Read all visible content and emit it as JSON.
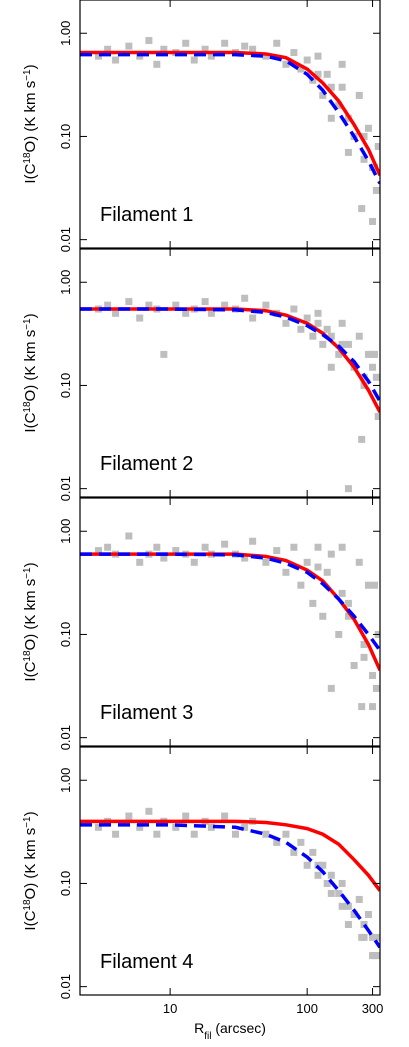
{
  "chart_data": [
    {
      "type": "scatter",
      "annotation": "Filament 1",
      "ylabel": [
        "I(C",
        "18",
        "O) (K km s",
        "−1",
        ")"
      ],
      "xlog": true,
      "ylog": true,
      "xlim": [
        2.2,
        340
      ],
      "ylim": [
        0.0083,
        2.1
      ],
      "xticks": [
        10,
        100,
        300
      ],
      "yticks": [
        {
          "value": 1,
          "label": "1.00"
        },
        {
          "value": 0.1,
          "label": "0.10"
        },
        {
          "value": 0.01,
          "label": "0.01"
        }
      ],
      "series": [
        {
          "marker": "square",
          "color": "#bebebe",
          "x": [
            3,
            3.5,
            4,
            5,
            6,
            7,
            8,
            9,
            11,
            13,
            15,
            18,
            20,
            25,
            30,
            35,
            40,
            50,
            60,
            70,
            80,
            90,
            100,
            110,
            120,
            130,
            140,
            150,
            170,
            180,
            200,
            220,
            240,
            260,
            280,
            300,
            320,
            330,
            150,
            200,
            250,
            300,
            120,
            180,
            260,
            310
          ],
          "values": [
            0.6,
            0.7,
            0.55,
            0.75,
            0.6,
            0.85,
            0.5,
            0.7,
            0.65,
            0.8,
            0.55,
            0.7,
            0.6,
            0.8,
            0.65,
            0.75,
            0.7,
            0.6,
            0.8,
            0.5,
            0.65,
            0.45,
            0.55,
            0.35,
            0.6,
            0.25,
            0.4,
            0.3,
            0.2,
            0.5,
            0.15,
            0.1,
            0.25,
            0.06,
            0.12,
            0.05,
            0.03,
            0.08,
            0.15,
            0.07,
            0.02,
            0.015,
            0.4,
            0.3,
            0.1,
            0.05
          ]
        },
        {
          "line": "solid",
          "color": "#ff0000",
          "x": [
            2.2,
            10,
            30,
            50,
            70,
            100,
            130,
            170,
            220,
            280,
            340
          ],
          "values": [
            0.65,
            0.65,
            0.65,
            0.63,
            0.58,
            0.45,
            0.33,
            0.22,
            0.13,
            0.075,
            0.042
          ]
        },
        {
          "line": "dashed",
          "color": "#0000ff",
          "x": [
            2.2,
            10,
            30,
            50,
            70,
            100,
            130,
            170,
            220,
            280,
            340
          ],
          "values": [
            0.62,
            0.62,
            0.62,
            0.6,
            0.54,
            0.4,
            0.28,
            0.17,
            0.1,
            0.058,
            0.035
          ]
        }
      ]
    },
    {
      "type": "scatter",
      "annotation": "Filament 2",
      "ylabel": [
        "I(C",
        "18",
        "O) (K km s",
        "−1",
        ")"
      ],
      "xlog": true,
      "ylog": true,
      "xlim": [
        2.2,
        340
      ],
      "ylim": [
        0.0083,
        2.1
      ],
      "xticks": [
        10,
        100,
        300
      ],
      "yticks": [
        {
          "value": 1,
          "label": "1.00"
        },
        {
          "value": 0.1,
          "label": "0.10"
        },
        {
          "value": 0.01,
          "label": "0.01"
        }
      ],
      "series": [
        {
          "marker": "square",
          "color": "#bebebe",
          "x": [
            3,
            3.5,
            4,
            5,
            6,
            7,
            8,
            9,
            11,
            13,
            15,
            18,
            20,
            25,
            30,
            35,
            40,
            50,
            60,
            70,
            80,
            90,
            100,
            110,
            120,
            130,
            140,
            150,
            170,
            180,
            200,
            220,
            240,
            260,
            280,
            300,
            320,
            330,
            150,
            200,
            250,
            300,
            120,
            180,
            260,
            310
          ],
          "values": [
            0.55,
            0.6,
            0.5,
            0.65,
            0.45,
            0.6,
            0.55,
            0.2,
            0.6,
            0.5,
            0.55,
            0.65,
            0.5,
            0.6,
            0.55,
            0.7,
            0.45,
            0.6,
            0.5,
            0.4,
            0.55,
            0.35,
            0.45,
            0.3,
            0.5,
            0.25,
            0.35,
            0.3,
            0.2,
            0.4,
            0.25,
            0.15,
            0.3,
            0.1,
            0.2,
            0.15,
            0.12,
            0.05,
            0.15,
            0.01,
            0.03,
            0.2,
            0.4,
            0.25,
            0.12,
            0.2
          ]
        },
        {
          "line": "solid",
          "color": "#ff0000",
          "x": [
            2.2,
            10,
            30,
            50,
            70,
            100,
            130,
            170,
            220,
            280,
            340
          ],
          "values": [
            0.55,
            0.55,
            0.55,
            0.53,
            0.48,
            0.4,
            0.32,
            0.23,
            0.15,
            0.09,
            0.055
          ]
        },
        {
          "line": "dashed",
          "color": "#0000ff",
          "x": [
            2.2,
            10,
            30,
            50,
            70,
            100,
            130,
            170,
            220,
            280,
            340
          ],
          "values": [
            0.55,
            0.55,
            0.54,
            0.51,
            0.46,
            0.38,
            0.31,
            0.24,
            0.17,
            0.11,
            0.07
          ]
        }
      ]
    },
    {
      "type": "scatter",
      "annotation": "Filament 3",
      "ylabel": [
        "I(C",
        "18",
        "O) (K km s",
        "−1",
        ")"
      ],
      "xlog": true,
      "ylog": true,
      "xlim": [
        2.2,
        340
      ],
      "ylim": [
        0.0083,
        2.1
      ],
      "xticks": [
        10,
        100,
        300
      ],
      "yticks": [
        {
          "value": 1,
          "label": "1.00"
        },
        {
          "value": 0.1,
          "label": "0.10"
        },
        {
          "value": 0.01,
          "label": "0.01"
        }
      ],
      "series": [
        {
          "marker": "square",
          "color": "#bebebe",
          "x": [
            3,
            3.5,
            4,
            5,
            6,
            7,
            8,
            9,
            11,
            13,
            15,
            18,
            20,
            25,
            30,
            35,
            40,
            50,
            60,
            70,
            80,
            90,
            100,
            110,
            120,
            130,
            140,
            150,
            170,
            180,
            200,
            220,
            240,
            260,
            280,
            300,
            320,
            330,
            150,
            200,
            250,
            300,
            120,
            180,
            260,
            310
          ],
          "values": [
            0.65,
            0.7,
            0.6,
            0.9,
            0.5,
            0.6,
            0.7,
            0.55,
            0.65,
            0.6,
            0.5,
            0.7,
            0.6,
            0.75,
            0.6,
            0.55,
            0.8,
            0.5,
            0.65,
            0.4,
            0.7,
            0.3,
            0.5,
            0.2,
            0.7,
            0.15,
            0.4,
            0.6,
            0.1,
            0.7,
            0.2,
            0.05,
            0.5,
            0.08,
            0.3,
            0.04,
            0.03,
            0.1,
            0.03,
            0.15,
            0.02,
            0.02,
            0.45,
            0.25,
            0.06,
            0.3
          ]
        },
        {
          "line": "solid",
          "color": "#ff0000",
          "x": [
            2.2,
            10,
            30,
            50,
            70,
            100,
            130,
            170,
            220,
            280,
            340
          ],
          "values": [
            0.6,
            0.6,
            0.6,
            0.57,
            0.52,
            0.42,
            0.33,
            0.22,
            0.14,
            0.08,
            0.045
          ]
        },
        {
          "line": "dashed",
          "color": "#0000ff",
          "x": [
            2.2,
            10,
            30,
            50,
            70,
            100,
            130,
            170,
            220,
            280,
            340
          ],
          "values": [
            0.6,
            0.6,
            0.59,
            0.55,
            0.49,
            0.4,
            0.31,
            0.22,
            0.15,
            0.1,
            0.07
          ]
        }
      ]
    },
    {
      "type": "scatter",
      "annotation": "Filament 4",
      "ylabel": [
        "I(C",
        "18",
        "O) (K km s",
        "−1",
        ")"
      ],
      "xlabel": [
        "R",
        "fil",
        " (arcsec)"
      ],
      "xlog": true,
      "ylog": true,
      "xlim": [
        2.2,
        340
      ],
      "ylim": [
        0.0083,
        2.1
      ],
      "xticks": [
        10,
        100,
        300
      ],
      "yticks": [
        {
          "value": 1,
          "label": "1.00"
        },
        {
          "value": 0.1,
          "label": "0.10"
        },
        {
          "value": 0.01,
          "label": "0.01"
        }
      ],
      "series": [
        {
          "marker": "square",
          "color": "#bebebe",
          "x": [
            3,
            3.5,
            4,
            5,
            6,
            7,
            8,
            9,
            11,
            13,
            15,
            18,
            20,
            25,
            30,
            35,
            40,
            50,
            60,
            70,
            80,
            90,
            100,
            110,
            120,
            130,
            140,
            150,
            170,
            180,
            200,
            220,
            240,
            260,
            280,
            300,
            320,
            330,
            150,
            200,
            250,
            300,
            120,
            180,
            260,
            310
          ],
          "values": [
            0.35,
            0.4,
            0.3,
            0.45,
            0.35,
            0.5,
            0.3,
            0.4,
            0.35,
            0.45,
            0.3,
            0.4,
            0.35,
            0.45,
            0.3,
            0.35,
            0.4,
            0.3,
            0.25,
            0.3,
            0.2,
            0.25,
            0.15,
            0.2,
            0.12,
            0.15,
            0.1,
            0.12,
            0.08,
            0.1,
            0.06,
            0.05,
            0.07,
            0.04,
            0.05,
            0.03,
            0.02,
            0.03,
            0.08,
            0.04,
            0.03,
            0.02,
            0.15,
            0.06,
            0.03,
            0.02
          ]
        },
        {
          "line": "solid",
          "color": "#ff0000",
          "x": [
            2.2,
            10,
            30,
            50,
            70,
            100,
            130,
            170,
            220,
            280,
            340
          ],
          "values": [
            0.4,
            0.4,
            0.4,
            0.39,
            0.37,
            0.34,
            0.3,
            0.24,
            0.17,
            0.12,
            0.085
          ]
        },
        {
          "line": "dashed",
          "color": "#0000ff",
          "x": [
            2.2,
            10,
            30,
            50,
            70,
            100,
            130,
            170,
            220,
            280,
            340
          ],
          "values": [
            0.37,
            0.37,
            0.35,
            0.3,
            0.25,
            0.18,
            0.13,
            0.085,
            0.055,
            0.035,
            0.024
          ]
        }
      ]
    }
  ]
}
